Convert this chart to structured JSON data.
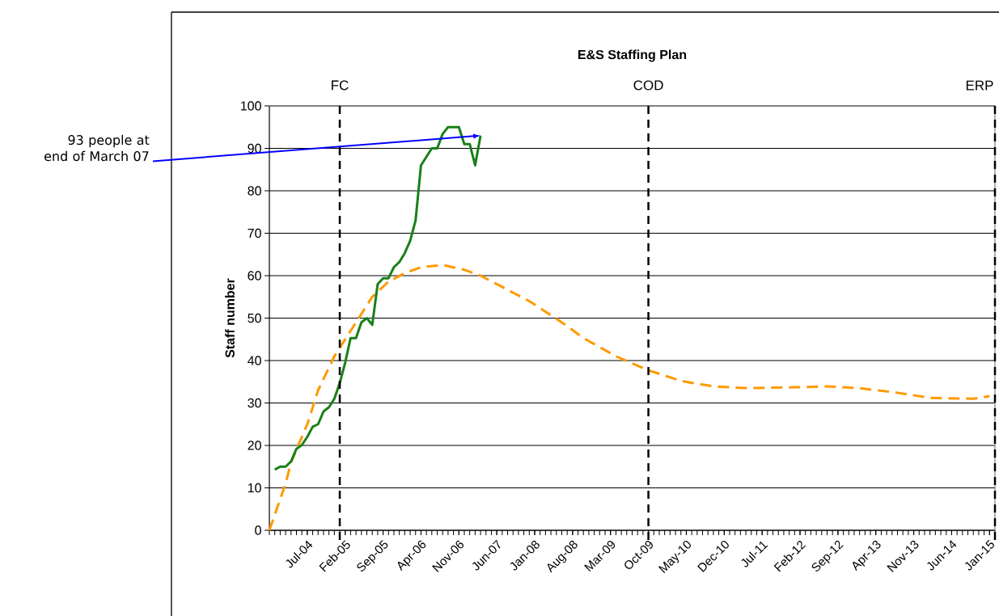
{
  "chart_data": {
    "type": "line",
    "title": "E&S Staffing Plan",
    "ylabel": "Staff number",
    "xlim": [
      "2003-12",
      "2015-02"
    ],
    "ylim": [
      0,
      100
    ],
    "yticks": [
      0,
      10,
      20,
      30,
      40,
      50,
      60,
      70,
      80,
      90,
      100
    ],
    "xticks": [
      {
        "value": "2004-07",
        "label": "Jul-04"
      },
      {
        "value": "2005-02",
        "label": "Feb-05"
      },
      {
        "value": "2005-09",
        "label": "Sep-05"
      },
      {
        "value": "2006-04",
        "label": "Apr-06"
      },
      {
        "value": "2006-11",
        "label": "Nov-06"
      },
      {
        "value": "2007-06",
        "label": "Jun-07"
      },
      {
        "value": "2008-01",
        "label": "Jan-08"
      },
      {
        "value": "2008-08",
        "label": "Aug-08"
      },
      {
        "value": "2009-03",
        "label": "Mar-09"
      },
      {
        "value": "2009-10",
        "label": "Oct-09"
      },
      {
        "value": "2010-05",
        "label": "May-10"
      },
      {
        "value": "2010-12",
        "label": "Dec-10"
      },
      {
        "value": "2011-07",
        "label": "Jul-11"
      },
      {
        "value": "2012-02",
        "label": "Feb-12"
      },
      {
        "value": "2012-09",
        "label": "Sep-12"
      },
      {
        "value": "2013-04",
        "label": "Apr-13"
      },
      {
        "value": "2013-11",
        "label": "Nov-13"
      },
      {
        "value": "2014-06",
        "label": "Jun-14"
      },
      {
        "value": "2015-01",
        "label": "Jan-15"
      }
    ],
    "grid": "y",
    "marker": "none",
    "series": [
      {
        "color": "#ff9900",
        "line_style": "dashed",
        "x": [
          "2003-12",
          "2004-03",
          "2004-04",
          "2004-07",
          "2004-09",
          "2004-12",
          "2005-03",
          "2005-07",
          "2005-10",
          "2006-01",
          "2006-04",
          "2006-08",
          "2006-12",
          "2007-03",
          "2007-06",
          "2007-09",
          "2007-12",
          "2008-06",
          "2008-10",
          "2009-04",
          "2009-10",
          "2010-04",
          "2010-10",
          "2011-04",
          "2012-01",
          "2012-07",
          "2013-01",
          "2013-08",
          "2014-02",
          "2014-10",
          "2015-01"
        ],
        "values": [
          0,
          11,
          16,
          25,
          33,
          41,
          47,
          55,
          58.6,
          60.6,
          62,
          62.5,
          61.4,
          60,
          58,
          56,
          54,
          49,
          45.3,
          41,
          37.7,
          35.2,
          33.9,
          33.5,
          33.7,
          33.9,
          33.5,
          32.4,
          31.2,
          31,
          31.6
        ]
      },
      {
        "color": "#198019",
        "line_style": "solid",
        "x": [
          "2004-01",
          "2004-02",
          "2004-03",
          "2004-04",
          "2004-05",
          "2004-06",
          "2004-07",
          "2004-08",
          "2004-09",
          "2004-10",
          "2004-11",
          "2004-12",
          "2005-01",
          "2005-02",
          "2005-03",
          "2005-04",
          "2005-05",
          "2005-06",
          "2005-07",
          "2005-08",
          "2005-09",
          "2005-10",
          "2005-11",
          "2005-12",
          "2006-01",
          "2006-02",
          "2006-03",
          "2006-04",
          "2006-05",
          "2006-06",
          "2006-07",
          "2006-08",
          "2006-09",
          "2006-10",
          "2006-11",
          "2006-12",
          "2007-01",
          "2007-02",
          "2007-03"
        ],
        "values": [
          14.3,
          15,
          15,
          16.2,
          19.2,
          20.1,
          22,
          24.4,
          25,
          28,
          29,
          31,
          34.7,
          39.5,
          45.3,
          45.3,
          49,
          50,
          48.4,
          58,
          59.4,
          59.4,
          62,
          63.2,
          65.3,
          68.2,
          73,
          86,
          88,
          90,
          90,
          93.4,
          95,
          95,
          95,
          91,
          91,
          86,
          93
        ]
      }
    ],
    "ref_lines": [
      {
        "axis": "x",
        "value": "2005-01",
        "label": "FC",
        "line_style": "dashed",
        "color": "#000000"
      },
      {
        "axis": "x",
        "value": "2009-10",
        "label": "COD",
        "line_style": "dashed",
        "color": "#000000"
      },
      {
        "axis": "x",
        "value": "2015-02",
        "label": "ERP",
        "line_style": "dashed",
        "color": "#000000"
      }
    ],
    "annotations": [
      {
        "text": "93 people at end of March 07",
        "x": "2007-03",
        "y": 93
      }
    ]
  }
}
